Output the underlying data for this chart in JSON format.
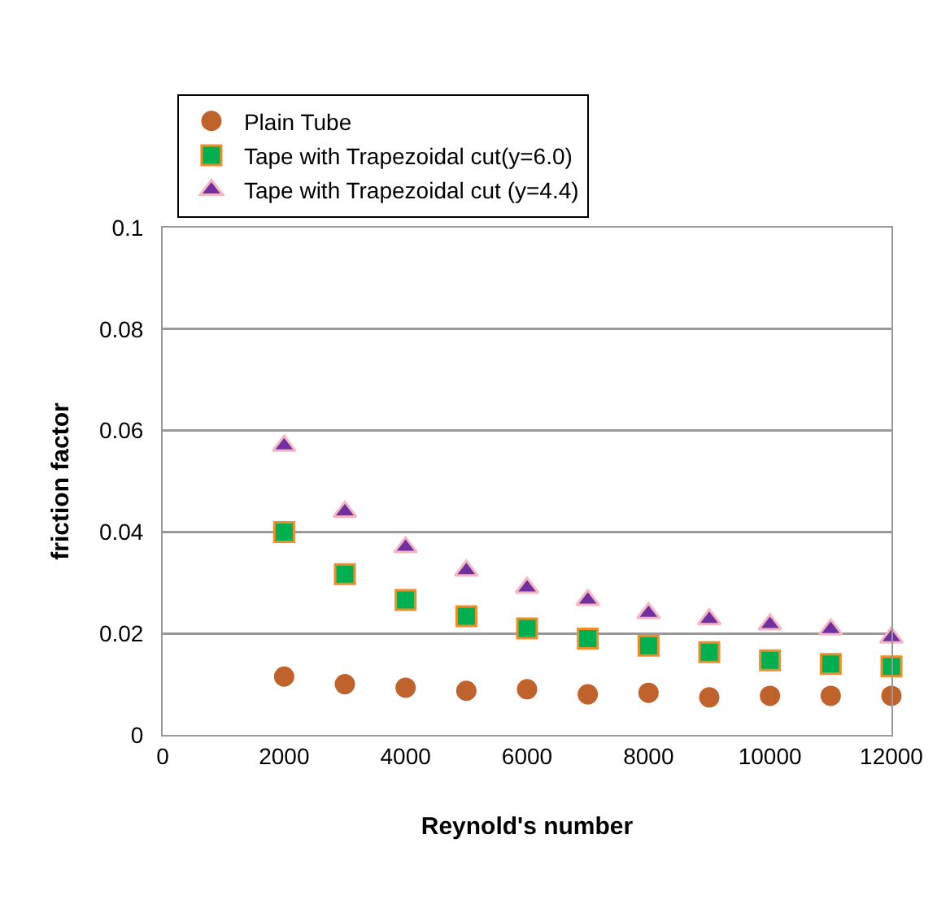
{
  "chart_data": {
    "type": "scatter",
    "xlabel": "Reynold's number",
    "ylabel": "friction factor",
    "x": [
      2000,
      3000,
      4000,
      5000,
      6000,
      7000,
      8000,
      9000,
      10000,
      11000,
      12000
    ],
    "series": [
      {
        "name": "Plain Tube",
        "color": "#c0622b",
        "marker": "circle",
        "values": [
          0.0115,
          0.01,
          0.0093,
          0.0087,
          0.009,
          0.008,
          0.0083,
          0.0074,
          0.0077,
          0.0077,
          0.0077
        ]
      },
      {
        "name": "Tape with Trapezoidal cut(y=6.0)",
        "color": "#00b050",
        "marker": "square",
        "values": [
          0.04,
          0.0317,
          0.0266,
          0.0234,
          0.021,
          0.019,
          0.0176,
          0.0163,
          0.0147,
          0.014,
          0.0135
        ]
      },
      {
        "name": "Tape with Trapezoidal cut (y=4.4)",
        "color": "#7030a0",
        "marker": "triangle",
        "values": [
          0.057,
          0.044,
          0.037,
          0.0324,
          0.029,
          0.0266,
          0.024,
          0.0228,
          0.0218,
          0.0208,
          0.0192
        ]
      }
    ],
    "xlim": [
      0,
      12000
    ],
    "xticks": [
      0,
      2000,
      4000,
      6000,
      8000,
      10000,
      12000
    ],
    "ylim": [
      0,
      0.1
    ],
    "yticks": [
      0,
      0.02,
      0.04,
      0.06,
      0.08,
      0.1
    ],
    "grid": "y",
    "legend": "top left"
  }
}
